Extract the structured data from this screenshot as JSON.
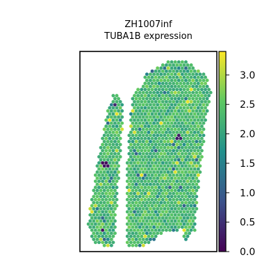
{
  "chart_data": {
    "type": "scatter",
    "title": [
      "ZH1007inf",
      "TUBA1B expression"
    ],
    "xlabel": "",
    "ylabel": "",
    "x_ticks_visible": false,
    "y_ticks_visible": false,
    "points_shape": "hexagonal-grid spatial spots",
    "colormap": "viridis",
    "colormap_stops": [
      "#440154",
      "#3b528b",
      "#21908c",
      "#5dc863",
      "#fde725"
    ],
    "colorbar": {
      "range": [
        0.0,
        3.4
      ],
      "ticks": [
        0.0,
        0.5,
        1.0,
        1.5,
        2.0,
        2.5,
        3.0
      ],
      "tick_labels": [
        "0.0",
        "0.5",
        "1.0",
        "1.5",
        "2.0",
        "2.5",
        "3.0"
      ]
    },
    "value_summary": {
      "typical_range": [
        1.8,
        2.8
      ],
      "max_observed": 3.4,
      "low_value_spots": [
        {
          "x": 0.18,
          "y": 0.56,
          "value": 0.1
        },
        {
          "x": 0.19,
          "y": 0.57,
          "value": 0.2
        },
        {
          "x": 0.29,
          "y": 0.87,
          "value": 0.3
        },
        {
          "x": 0.17,
          "y": 0.89,
          "value": 0.2
        },
        {
          "x": 0.25,
          "y": 0.27,
          "value": 0.4
        },
        {
          "x": 0.72,
          "y": 0.43,
          "value": 0.3
        }
      ],
      "high_value_spots": [
        {
          "x": 0.22,
          "y": 0.34,
          "value": 3.3
        },
        {
          "x": 0.48,
          "y": 0.92,
          "value": 3.2
        },
        {
          "x": 0.75,
          "y": 0.89,
          "value": 3.3
        }
      ]
    },
    "tissue_regions": [
      {
        "name": "left strip",
        "outline": [
          [
            0.25,
            0.21
          ],
          [
            0.3,
            0.23
          ],
          [
            0.32,
            0.28
          ],
          [
            0.25,
            0.98
          ],
          [
            0.1,
            0.96
          ],
          [
            0.06,
            0.86
          ],
          [
            0.08,
            0.76
          ],
          [
            0.13,
            0.54
          ],
          [
            0.18,
            0.37
          ],
          [
            0.21,
            0.27
          ]
        ]
      },
      {
        "name": "main body",
        "outline": [
          [
            0.48,
            0.11
          ],
          [
            0.64,
            0.05
          ],
          [
            0.78,
            0.05
          ],
          [
            0.92,
            0.12
          ],
          [
            0.96,
            0.2
          ],
          [
            0.92,
            0.34
          ],
          [
            0.9,
            0.5
          ],
          [
            0.86,
            0.73
          ],
          [
            0.84,
            0.9
          ],
          [
            0.8,
            0.91
          ],
          [
            0.77,
            0.95
          ],
          [
            0.74,
            0.88
          ],
          [
            0.7,
            0.9
          ],
          [
            0.62,
            0.9
          ],
          [
            0.53,
            0.95
          ],
          [
            0.44,
            0.98
          ],
          [
            0.38,
            0.98
          ],
          [
            0.34,
            0.96
          ],
          [
            0.34,
            0.6
          ],
          [
            0.36,
            0.4
          ],
          [
            0.38,
            0.22
          ],
          [
            0.41,
            0.19
          ],
          [
            0.46,
            0.17
          ]
        ]
      }
    ]
  }
}
